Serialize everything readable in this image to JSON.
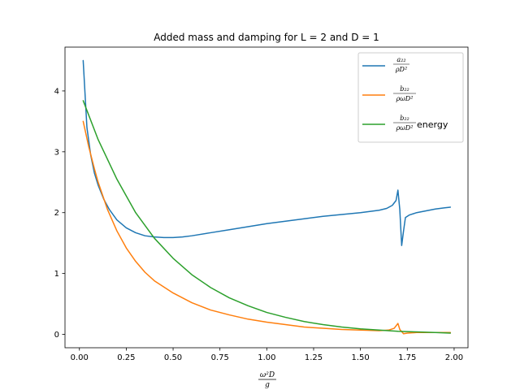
{
  "chart_data": {
    "type": "line",
    "title": "Added mass and damping for L = 2 and D = 1",
    "xlabel": {
      "numerator": "ω²D",
      "denominator": "g"
    },
    "ylabel": "",
    "xlim": [
      -0.077,
      2.074
    ],
    "ylim": [
      -0.22,
      4.72
    ],
    "xticks": [
      0.0,
      0.25,
      0.5,
      0.75,
      1.0,
      1.25,
      1.5,
      1.75,
      2.0
    ],
    "xtick_labels": [
      "0.00",
      "0.25",
      "0.50",
      "0.75",
      "1.00",
      "1.25",
      "1.50",
      "1.75",
      "2.00"
    ],
    "yticks": [
      0,
      1,
      2,
      3,
      4
    ],
    "ytick_labels": [
      "0",
      "1",
      "2",
      "3",
      "4"
    ],
    "grid": false,
    "legend_position": "top-right",
    "series": [
      {
        "name": "a22 / (ρD²)",
        "legend": {
          "numerator": "a₂₂",
          "denominator": "ρD²",
          "suffix": ""
        },
        "color": "#1f77b4",
        "x": [
          0.02,
          0.04,
          0.06,
          0.08,
          0.1,
          0.13,
          0.16,
          0.2,
          0.25,
          0.3,
          0.35,
          0.4,
          0.45,
          0.5,
          0.55,
          0.6,
          0.7,
          0.8,
          0.9,
          1.0,
          1.1,
          1.2,
          1.3,
          1.4,
          1.5,
          1.6,
          1.64,
          1.67,
          1.69,
          1.7,
          1.71,
          1.72,
          1.73,
          1.74,
          1.76,
          1.8,
          1.85,
          1.9,
          1.95,
          1.98
        ],
        "y": [
          4.5,
          3.4,
          2.95,
          2.65,
          2.45,
          2.22,
          2.05,
          1.88,
          1.75,
          1.67,
          1.62,
          1.6,
          1.59,
          1.59,
          1.6,
          1.62,
          1.67,
          1.72,
          1.77,
          1.82,
          1.86,
          1.9,
          1.94,
          1.97,
          2.0,
          2.04,
          2.07,
          2.12,
          2.2,
          2.37,
          2.05,
          1.46,
          1.7,
          1.92,
          1.96,
          2.0,
          2.03,
          2.06,
          2.08,
          2.09
        ]
      },
      {
        "name": "b22 / (ρωD²)",
        "legend": {
          "numerator": "b₂₂",
          "denominator": "ρωD²",
          "suffix": ""
        },
        "color": "#ff7f0e",
        "x": [
          0.02,
          0.05,
          0.08,
          0.1,
          0.15,
          0.2,
          0.25,
          0.3,
          0.35,
          0.4,
          0.5,
          0.6,
          0.7,
          0.8,
          0.9,
          1.0,
          1.1,
          1.2,
          1.3,
          1.4,
          1.5,
          1.6,
          1.65,
          1.68,
          1.7,
          1.71,
          1.73,
          1.75,
          1.8,
          1.9,
          1.98
        ],
        "y": [
          3.5,
          3.08,
          2.72,
          2.5,
          2.05,
          1.7,
          1.42,
          1.2,
          1.02,
          0.88,
          0.68,
          0.52,
          0.4,
          0.32,
          0.25,
          0.2,
          0.16,
          0.12,
          0.1,
          0.08,
          0.07,
          0.06,
          0.07,
          0.1,
          0.18,
          0.08,
          0.01,
          0.02,
          0.03,
          0.03,
          0.03
        ]
      },
      {
        "name": "b22 / (ρωD²) energy",
        "legend": {
          "numerator": "b₂₂",
          "denominator": "ρωD²",
          "suffix": "energy"
        },
        "color": "#2ca02c",
        "x": [
          0.02,
          0.1,
          0.2,
          0.3,
          0.4,
          0.5,
          0.6,
          0.7,
          0.8,
          0.9,
          1.0,
          1.1,
          1.2,
          1.3,
          1.4,
          1.5,
          1.6,
          1.7,
          1.8,
          1.9,
          1.98
        ],
        "y": [
          3.84,
          3.2,
          2.55,
          2.0,
          1.58,
          1.25,
          0.98,
          0.77,
          0.6,
          0.47,
          0.36,
          0.28,
          0.21,
          0.16,
          0.12,
          0.09,
          0.07,
          0.05,
          0.04,
          0.03,
          0.02
        ]
      }
    ]
  }
}
